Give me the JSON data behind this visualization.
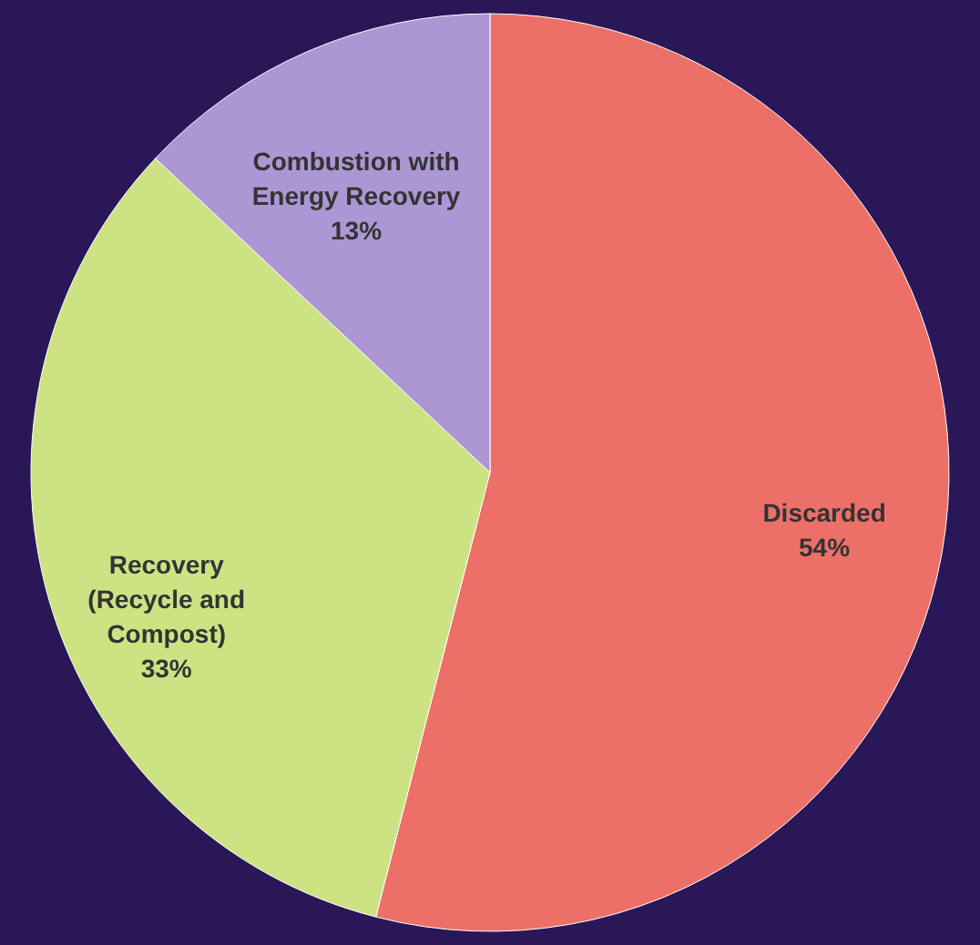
{
  "chart_data": {
    "type": "pie",
    "categories": [
      "Discarded",
      "Recovery (Recycle and Compost)",
      "Combustion with Energy Recovery"
    ],
    "values": [
      54,
      33,
      13
    ],
    "value_labels": [
      "54%",
      "33%",
      "13%"
    ],
    "colors": [
      "#ec7068",
      "#cde383",
      "#ac96d4"
    ],
    "legend": false
  }
}
